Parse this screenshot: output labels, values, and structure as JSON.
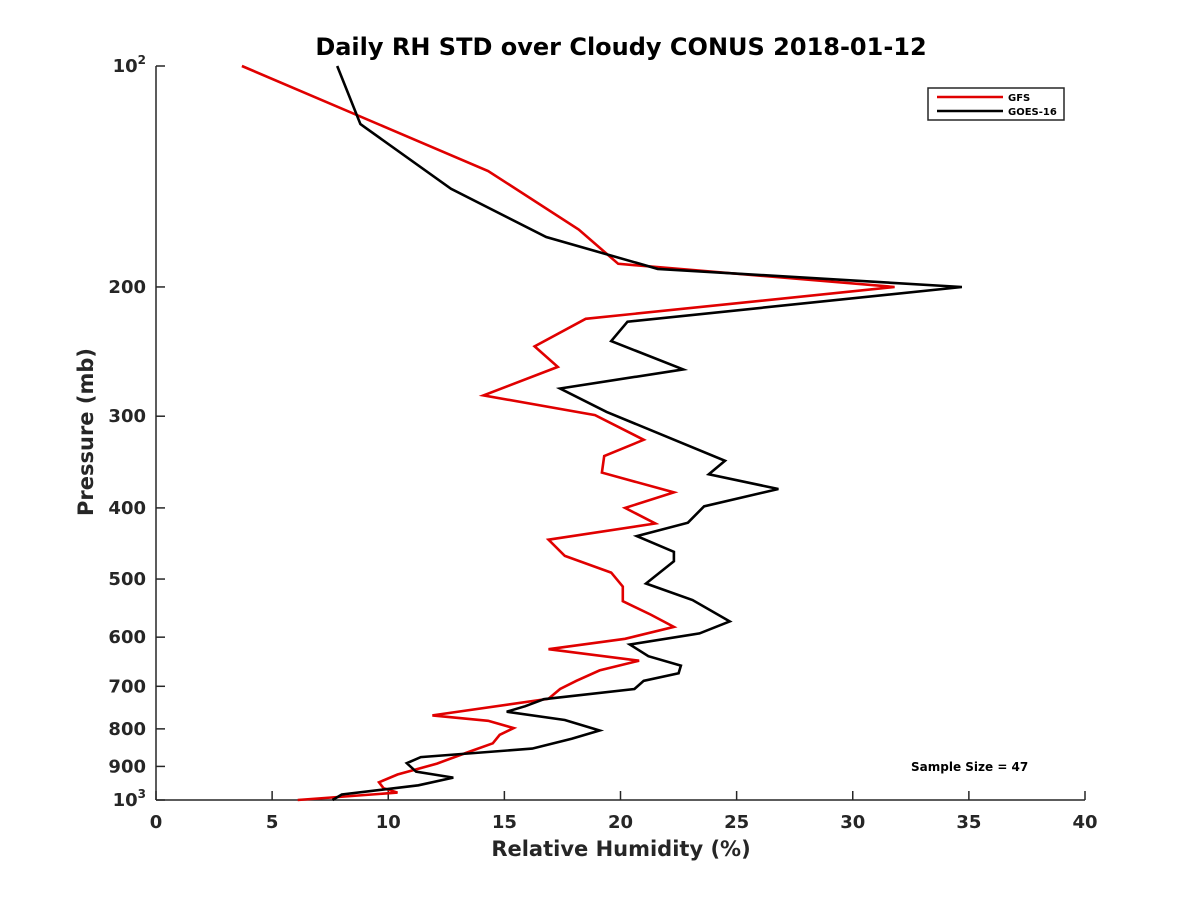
{
  "chart_data": {
    "type": "line",
    "title": "Daily RH STD over Cloudy CONUS 2018-01-12",
    "xlabel": "Relative Humidity (%)",
    "ylabel": "Pressure (mb)",
    "xlim": [
      0,
      40
    ],
    "ylim": [
      1000,
      100
    ],
    "y_scale": "log",
    "y_reversed": true,
    "x_ticks": [
      "0",
      "5",
      "10",
      "15",
      "20",
      "25",
      "30",
      "35",
      "40"
    ],
    "y_ticks": [
      {
        "value": 100,
        "base": "10",
        "exp": "2"
      },
      {
        "value": 200,
        "label": "200"
      },
      {
        "value": 300,
        "label": "300"
      },
      {
        "value": 400,
        "label": "400"
      },
      {
        "value": 500,
        "label": "500"
      },
      {
        "value": 600,
        "label": "600"
      },
      {
        "value": 700,
        "label": "700"
      },
      {
        "value": 800,
        "label": "800"
      },
      {
        "value": 900,
        "label": "900"
      },
      {
        "value": 1000,
        "base": "10",
        "exp": "3"
      }
    ],
    "legend_position": "top-right",
    "annotation": "Sample Size = 47",
    "grid": false,
    "series": [
      {
        "name": "GFS",
        "color": "#e00000",
        "points": [
          [
            3.7,
            100
          ],
          [
            14.3,
            139
          ],
          [
            18.2,
            167
          ],
          [
            19.9,
            186
          ],
          [
            31.8,
            200
          ],
          [
            18.5,
            221
          ],
          [
            16.3,
            241
          ],
          [
            17.3,
            257
          ],
          [
            14.1,
            281
          ],
          [
            18.9,
            299
          ],
          [
            21.0,
            323
          ],
          [
            19.3,
            340
          ],
          [
            19.2,
            358
          ],
          [
            22.3,
            381
          ],
          [
            20.2,
            400
          ],
          [
            21.5,
            420
          ],
          [
            16.9,
            442
          ],
          [
            17.6,
            465
          ],
          [
            19.6,
            490
          ],
          [
            20.1,
            512
          ],
          [
            20.1,
            536
          ],
          [
            21.3,
            559
          ],
          [
            22.3,
            581
          ],
          [
            20.2,
            603
          ],
          [
            16.9,
            623
          ],
          [
            20.8,
            646
          ],
          [
            19.1,
            666
          ],
          [
            18.1,
            688
          ],
          [
            17.4,
            706
          ],
          [
            16.9,
            728
          ],
          [
            11.9,
            767
          ],
          [
            14.3,
            780
          ],
          [
            15.4,
            798
          ],
          [
            14.8,
            815
          ],
          [
            14.5,
            837
          ],
          [
            13.5,
            859
          ],
          [
            12.1,
            892
          ],
          [
            10.4,
            923
          ],
          [
            9.6,
            946
          ],
          [
            9.8,
            964
          ],
          [
            10.4,
            977
          ],
          [
            6.1,
            1000
          ]
        ]
      },
      {
        "name": "GOES-16",
        "color": "#000000",
        "points": [
          [
            7.8,
            100
          ],
          [
            8.8,
            120
          ],
          [
            12.7,
            147
          ],
          [
            16.8,
            171
          ],
          [
            21.6,
            189
          ],
          [
            34.7,
            200
          ],
          [
            20.3,
            223
          ],
          [
            19.6,
            237
          ],
          [
            22.7,
            259
          ],
          [
            17.4,
            275
          ],
          [
            19.4,
            296
          ],
          [
            24.5,
            345
          ],
          [
            23.8,
            360
          ],
          [
            26.8,
            377
          ],
          [
            23.6,
            398
          ],
          [
            22.9,
            419
          ],
          [
            20.7,
            437
          ],
          [
            22.3,
            459
          ],
          [
            22.3,
            473
          ],
          [
            21.1,
            507
          ],
          [
            23.1,
            534
          ],
          [
            24.7,
            571
          ],
          [
            23.4,
            593
          ],
          [
            20.4,
            614
          ],
          [
            21.2,
            637
          ],
          [
            22.6,
            656
          ],
          [
            22.5,
            672
          ],
          [
            21.0,
            688
          ],
          [
            20.6,
            706
          ],
          [
            16.7,
            729
          ],
          [
            15.9,
            745
          ],
          [
            15.1,
            758
          ],
          [
            17.6,
            778
          ],
          [
            19.1,
            804
          ],
          [
            17.9,
            825
          ],
          [
            16.2,
            851
          ],
          [
            11.4,
            874
          ],
          [
            10.8,
            891
          ],
          [
            11.2,
            915
          ],
          [
            12.8,
            932
          ],
          [
            11.3,
            955
          ],
          [
            8.0,
            983
          ],
          [
            7.6,
            1000
          ]
        ]
      }
    ]
  }
}
